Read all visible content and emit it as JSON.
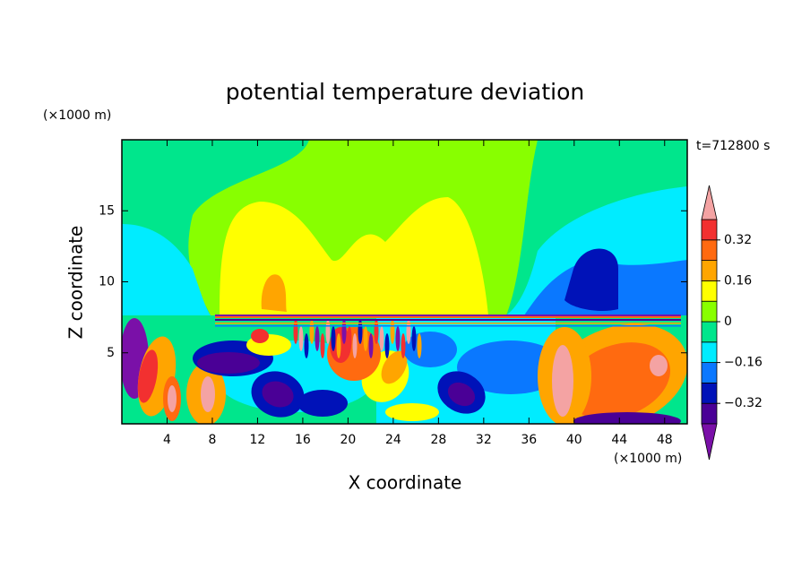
{
  "chart_data": {
    "type": "contour",
    "title": "potential temperature deviation",
    "x_label": "X coordinate",
    "y_label": "Z coordinate",
    "x_unit": "(×1000 m)",
    "y_unit": "(×1000 m)",
    "annotation": "t=712800 s",
    "xlim": [
      0,
      50
    ],
    "ylim": [
      0,
      20
    ],
    "xticks": [
      4,
      8,
      12,
      16,
      20,
      24,
      28,
      32,
      36,
      40,
      44,
      48
    ],
    "yticks": [
      5,
      10,
      15
    ],
    "levels": [
      -0.4,
      -0.32,
      -0.24,
      -0.16,
      -0.08,
      0,
      0.08,
      0.16,
      0.24,
      0.32,
      0.4
    ],
    "colors": [
      "#7a10a8",
      "#4a0096",
      "#0012b8",
      "#0a78ff",
      "#00ecff",
      "#00e68c",
      "#88ff00",
      "#ffff00",
      "#ffa500",
      "#ff6a10",
      "#f23030",
      "#f4a3a3"
    ],
    "colorbar_ticks": [
      {
        "value": -0.32,
        "label": "−0.32"
      },
      {
        "value": -0.16,
        "label": "−0.16"
      },
      0,
      0.16,
      0.32
    ]
  }
}
